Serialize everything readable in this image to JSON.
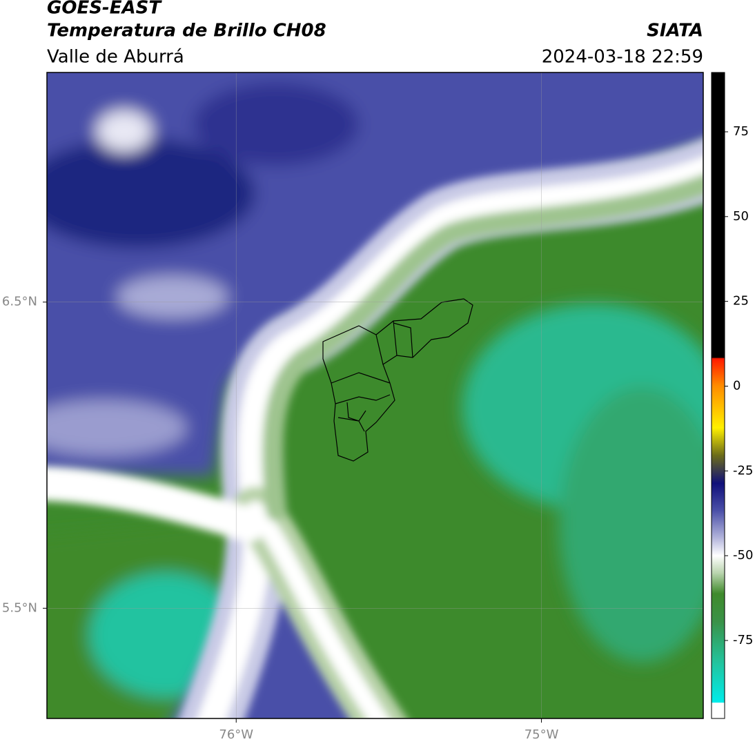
{
  "header": {
    "title": "GOES-EAST",
    "subtitle": "Temperatura de Brillo CH08",
    "region": "Valle de Aburrá",
    "source": "SIATA",
    "datetime": "2024-03-18 22:59"
  },
  "map": {
    "xlim": [
      -76.62,
      -74.47
    ],
    "ylim": [
      5.14,
      7.25
    ],
    "xticks": [
      {
        "value": -76,
        "label": "76°W"
      },
      {
        "value": -75,
        "label": "75°W"
      }
    ],
    "yticks": [
      {
        "value": 6.5,
        "label": "6.5°N"
      },
      {
        "value": 5.5,
        "label": "5.5°N"
      }
    ],
    "grid": true
  },
  "colorbar": {
    "lim": [
      -98,
      92.5
    ],
    "ticks": [
      75,
      50,
      25,
      0,
      -25,
      -50,
      -75
    ]
  }
}
